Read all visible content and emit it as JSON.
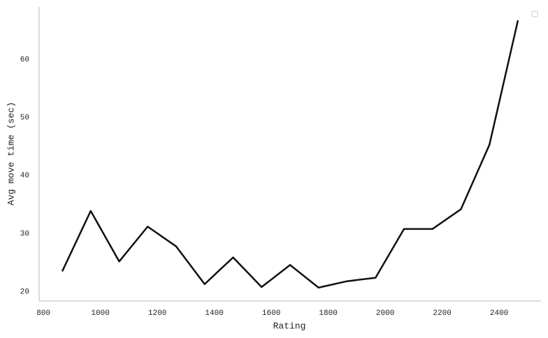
{
  "chart_data": {
    "type": "line",
    "x_label": "Rating",
    "y_label": "Avg move time (sec)",
    "x": [
      866,
      966,
      1066,
      1166,
      1266,
      1366,
      1466,
      1566,
      1666,
      1766,
      1866,
      1966,
      2066,
      2166,
      2266,
      2366,
      2466
    ],
    "series": [
      {
        "color": "#111111",
        "values": [
          23.5,
          33.9,
          25.2,
          31.2,
          27.8,
          21.3,
          25.9,
          20.8,
          24.6,
          20.7,
          21.8,
          22.4,
          30.8,
          30.8,
          34.2,
          45.3,
          66.7
        ]
      }
    ],
    "xlim": [
      785,
      2547
    ],
    "ylim": [
      18.4,
      69
    ],
    "xticks": [
      800,
      1000,
      1200,
      1400,
      1600,
      1800,
      2000,
      2200,
      2400
    ],
    "yticks": [
      20,
      30,
      40,
      50,
      60
    ],
    "grid": false
  }
}
